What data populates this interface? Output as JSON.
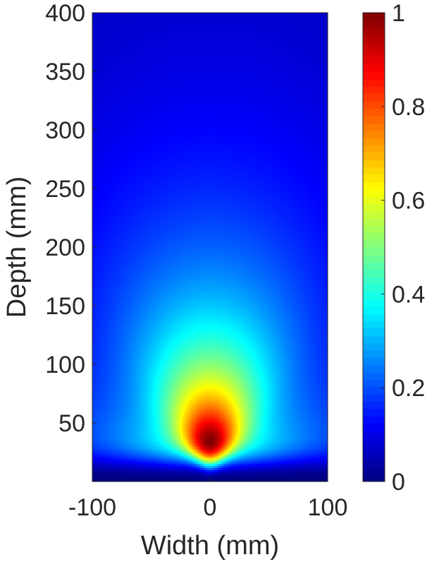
{
  "chart_data": {
    "type": "heatmap",
    "title": "",
    "xlabel": "Width (mm)",
    "ylabel": "Depth (mm)",
    "xlim": [
      -100,
      100
    ],
    "ylim": [
      0,
      400
    ],
    "x_ticks": [
      -100,
      0,
      100
    ],
    "x_tick_labels": [
      "-100",
      "0",
      "100"
    ],
    "y_ticks": [
      50,
      100,
      150,
      200,
      250,
      300,
      350,
      400
    ],
    "y_tick_labels": [
      "50",
      "100",
      "150",
      "200",
      "250",
      "300",
      "350",
      "400"
    ],
    "colormap": "jet",
    "colorbar": {
      "range": [
        0,
        1
      ],
      "ticks": [
        0,
        0.2,
        0.4,
        0.6,
        0.8,
        1
      ],
      "tick_labels": [
        "0",
        "0.2",
        "0.4",
        "0.6",
        "0.8",
        "1"
      ],
      "placement": "right"
    },
    "field": {
      "description_values": "normalized intensity, maximum 1 on axis near depth 35 mm, beam centered at width 0",
      "peak_depth": 35,
      "peak_width": 0,
      "max_value": 1,
      "min_value": 0
    },
    "grid": false
  }
}
